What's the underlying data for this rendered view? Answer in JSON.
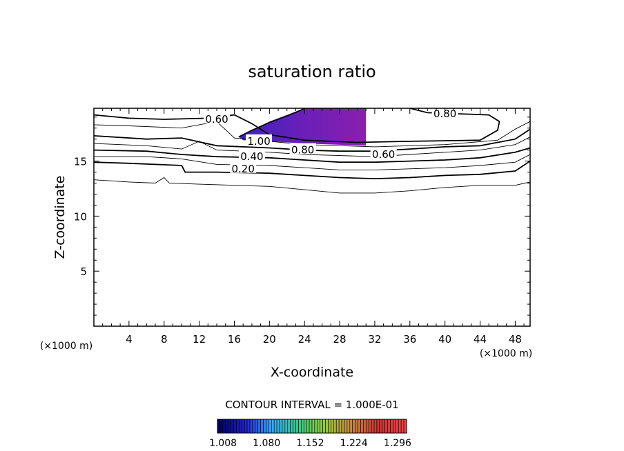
{
  "chart_data": {
    "type": "contour",
    "title": "saturation ratio",
    "xlabel": "X-coordinate",
    "ylabel": "Z-coordinate",
    "x_units": "(×1000 m)",
    "z_units": "(×1000 m)",
    "xlim": [
      0,
      49.7
    ],
    "ylim": [
      0,
      19.8
    ],
    "x_ticks": [
      4,
      8,
      12,
      16,
      20,
      24,
      28,
      32,
      36,
      40,
      44,
      48
    ],
    "y_ticks": [
      5,
      10,
      15
    ],
    "contour_labels": [
      {
        "text": "0.60",
        "x": 14.0,
        "y": 18.8
      },
      {
        "text": "0.80",
        "x": 40.0,
        "y": 19.3
      },
      {
        "text": "1.00",
        "x": 18.8,
        "y": 16.8
      },
      {
        "text": "0.80",
        "x": 23.8,
        "y": 16.0
      },
      {
        "text": "0.40",
        "x": 18.0,
        "y": 15.4
      },
      {
        "text": "0.60",
        "x": 33.0,
        "y": 15.6
      },
      {
        "text": "0.20",
        "x": 17.0,
        "y": 14.3
      }
    ],
    "contours": [
      {
        "level": 0.1,
        "points": [
          [
            0,
            13.3
          ],
          [
            4,
            13.1
          ],
          [
            7,
            13.0
          ],
          [
            8,
            13.5
          ],
          [
            8.6,
            13.0
          ],
          [
            12,
            12.9
          ],
          [
            16,
            12.8
          ],
          [
            20,
            12.7
          ],
          [
            24,
            12.4
          ],
          [
            28,
            12.1
          ],
          [
            32,
            12.1
          ],
          [
            36,
            12.3
          ],
          [
            40,
            12.6
          ],
          [
            44,
            12.8
          ],
          [
            48,
            12.8
          ],
          [
            49.7,
            13.1
          ]
        ]
      },
      {
        "level": 0.2,
        "points": [
          [
            0,
            14.9
          ],
          [
            4,
            14.8
          ],
          [
            10,
            14.6
          ],
          [
            10.4,
            14.0
          ],
          [
            14,
            14.0
          ],
          [
            20,
            13.9
          ],
          [
            24,
            13.7
          ],
          [
            28,
            13.5
          ],
          [
            32,
            13.4
          ],
          [
            36,
            13.5
          ],
          [
            40,
            13.7
          ],
          [
            44,
            13.8
          ],
          [
            48,
            14.1
          ],
          [
            49.7,
            15.0
          ]
        ]
      },
      {
        "level": 0.3,
        "points": [
          [
            0,
            15.4
          ],
          [
            6,
            15.4
          ],
          [
            10,
            15.2
          ],
          [
            14,
            14.7
          ],
          [
            20,
            14.6
          ],
          [
            24,
            14.4
          ],
          [
            28,
            14.2
          ],
          [
            32,
            14.2
          ],
          [
            36,
            14.3
          ],
          [
            40,
            14.4
          ],
          [
            44,
            14.6
          ],
          [
            48,
            14.9
          ],
          [
            49.7,
            15.6
          ]
        ]
      },
      {
        "level": 0.4,
        "points": [
          [
            0,
            16.0
          ],
          [
            6,
            15.9
          ],
          [
            10,
            15.6
          ],
          [
            14,
            15.4
          ],
          [
            20,
            15.3
          ],
          [
            24,
            15.1
          ],
          [
            28,
            14.9
          ],
          [
            32,
            14.9
          ],
          [
            36,
            15.0
          ],
          [
            40,
            15.1
          ],
          [
            44,
            15.3
          ],
          [
            48,
            15.8
          ],
          [
            49.7,
            16.2
          ]
        ]
      },
      {
        "level": 0.5,
        "points": [
          [
            0,
            16.6
          ],
          [
            6,
            16.4
          ],
          [
            10,
            16.1
          ],
          [
            12,
            16.8
          ],
          [
            14,
            16.0
          ],
          [
            20,
            15.8
          ],
          [
            24,
            15.6
          ],
          [
            28,
            15.5
          ],
          [
            32,
            15.4
          ],
          [
            36,
            15.6
          ],
          [
            40,
            15.8
          ],
          [
            44,
            16.0
          ],
          [
            48,
            16.5
          ],
          [
            49.7,
            17.2
          ]
        ]
      },
      {
        "level": 0.6,
        "points": [
          [
            0,
            17.3
          ],
          [
            6,
            17.0
          ],
          [
            10,
            17.1
          ],
          [
            14,
            16.4
          ],
          [
            20,
            16.2
          ],
          [
            24,
            16.0
          ],
          [
            28,
            15.9
          ],
          [
            32,
            15.9
          ],
          [
            36,
            16.1
          ],
          [
            40,
            16.3
          ],
          [
            44,
            16.4
          ],
          [
            48,
            17.0
          ],
          [
            49.7,
            17.9
          ]
        ]
      },
      {
        "level": 0.7,
        "points": [
          [
            0,
            18.3
          ],
          [
            4,
            18.2
          ],
          [
            10,
            18.0
          ],
          [
            14,
            18.6
          ],
          [
            16,
            17.1
          ],
          [
            24,
            16.5
          ],
          [
            32,
            16.3
          ],
          [
            40,
            16.5
          ],
          [
            46,
            16.9
          ],
          [
            48,
            17.9
          ],
          [
            49.7,
            18.6
          ]
        ]
      },
      {
        "level": 0.8,
        "points": [
          [
            0,
            19.2
          ],
          [
            4,
            18.9
          ],
          [
            8,
            18.8
          ],
          [
            13,
            18.9
          ],
          [
            16,
            19.2
          ],
          [
            18,
            18.4
          ],
          [
            20,
            17.4
          ],
          [
            24,
            16.9
          ],
          [
            30,
            16.7
          ],
          [
            36,
            16.8
          ],
          [
            44,
            16.9
          ],
          [
            46,
            17.8
          ],
          [
            46.2,
            18.6
          ],
          [
            45,
            19.2
          ],
          [
            38,
            19.4
          ],
          [
            36,
            19.8
          ]
        ]
      },
      {
        "level": 1.0,
        "points": [
          [
            16.5,
            17.2
          ],
          [
            18,
            17.8
          ],
          [
            20,
            18.5
          ],
          [
            22,
            19.1
          ],
          [
            23.5,
            19.6
          ],
          [
            24,
            19.8
          ]
        ]
      }
    ],
    "shaded_region": {
      "description_range": [
        1.008,
        1.05
      ],
      "outline": [
        [
          16.5,
          17.2
        ],
        [
          20,
          18.6
        ],
        [
          24,
          19.8
        ],
        [
          31,
          19.8
        ],
        [
          31,
          16.4
        ],
        [
          24,
          16.6
        ],
        [
          20,
          16.8
        ],
        [
          17,
          16.9
        ]
      ]
    },
    "contour_interval_text": "CONTOUR INTERVAL = 1.000E-01",
    "colorbar": {
      "min": 1.008,
      "max": 1.32,
      "tick_labels": [
        "1.008",
        "1.080",
        "1.152",
        "1.224",
        "1.296"
      ],
      "colors": [
        "#000066",
        "#2222cc",
        "#33aaff",
        "#33cc88",
        "#99cc33",
        "#cc8844",
        "#cc3333",
        "#ee4444"
      ]
    }
  }
}
